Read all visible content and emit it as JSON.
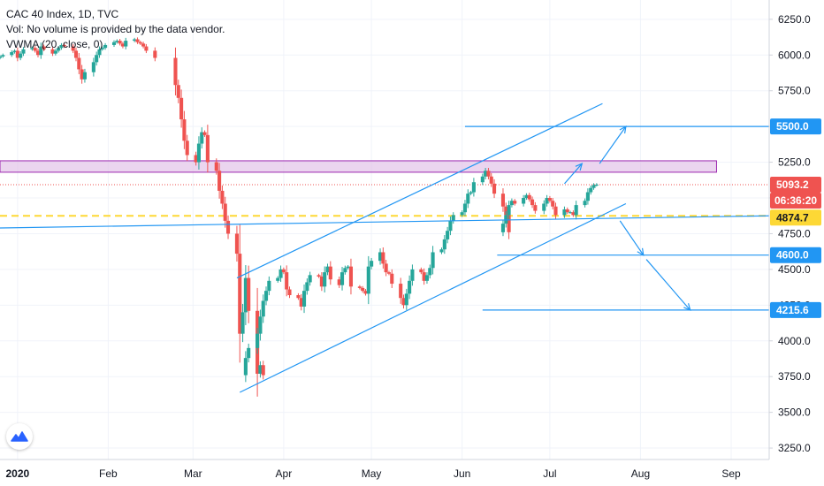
{
  "header": {
    "title": "CAC 40 Index, 1D, TVC",
    "volume_note": "Vol: No volume is provided by the data vendor.",
    "indicator": "VWMA (20, close, 0)"
  },
  "logo_icon": "tradingview-logo-icon",
  "countdown": "06:36:20",
  "colors": {
    "up": "#26a69a",
    "down": "#ef5350",
    "drawing": "#2196f3",
    "zone_fill": "#e1bee7",
    "zone_border": "#9c27b0",
    "vwma": "#fdd835"
  },
  "chart_data": {
    "type": "candlestick",
    "title": "CAC 40 Index, 1D, TVC",
    "xlabel": "",
    "ylabel": "",
    "y_scale": "linear",
    "ylim": [
      3170,
      6385
    ],
    "x_range": [
      "2019-12-26",
      "2020-09-14"
    ],
    "x_ticks": [
      {
        "label": "2020",
        "date": "2020-01-01",
        "bold": true
      },
      {
        "label": "Feb",
        "date": "2020-02-01"
      },
      {
        "label": "Mar",
        "date": "2020-03-01"
      },
      {
        "label": "Apr",
        "date": "2020-04-01"
      },
      {
        "label": "May",
        "date": "2020-05-01"
      },
      {
        "label": "Jun",
        "date": "2020-06-01"
      },
      {
        "label": "Jul",
        "date": "2020-07-01"
      },
      {
        "label": "Aug",
        "date": "2020-08-01"
      },
      {
        "label": "Sep",
        "date": "2020-09-01"
      }
    ],
    "y_ticks": [
      "3250.0",
      "3500.0",
      "3750.0",
      "4000.0",
      "4250.0",
      "4500.0",
      "4750.0",
      "5000.0",
      "5250.0",
      "5500.0",
      "5750.0",
      "6000.0",
      "6250.0"
    ],
    "price_labels": [
      {
        "value": 5500.0,
        "text": "5500.0",
        "style": "drawing"
      },
      {
        "value": 5093.2,
        "text": "5093.2",
        "style": "last"
      },
      {
        "value": 4874.7,
        "text": "4874.7",
        "style": "vwma"
      },
      {
        "value": 4600.0,
        "text": "4600.0",
        "style": "drawing"
      },
      {
        "value": 4215.6,
        "text": "4215.6",
        "style": "drawing"
      }
    ],
    "candle_segments": [
      {
        "start": "2019-12-26",
        "days": 38,
        "prices": [
          5990,
          6000,
          6020,
          6030,
          5980,
          6010,
          6040,
          6050,
          6030,
          6000,
          6060,
          6040,
          6010,
          6030,
          6050,
          6070,
          6060,
          6030,
          5980,
          5900,
          5830,
          5880,
          5950,
          6000,
          6040,
          6050,
          6070,
          6090,
          6100,
          6080,
          6060,
          6100,
          6110,
          6090,
          6080,
          6060,
          6030,
          5980
        ]
      },
      {
        "start": "2020-02-24",
        "days": 23,
        "prices": [
          5790,
          5700,
          5550,
          5400,
          5300,
          5250,
          5380,
          5460,
          5440,
          5250,
          5190,
          5050,
          4960,
          4840,
          4750,
          4610,
          4050,
          4200,
          4440,
          4210,
          3770,
          3830,
          3760
        ]
      },
      {
        "start": "2020-03-19",
        "days": 58,
        "prices": [
          3880,
          3950,
          4050,
          4170,
          4280,
          4350,
          4420,
          4440,
          4500,
          4480,
          4360,
          4320,
          4300,
          4240,
          4350,
          4410,
          4460,
          4450,
          4380,
          4480,
          4520,
          4430,
          4390,
          4480,
          4510,
          4520,
          4380,
          4370,
          4350,
          4330,
          4520,
          4560,
          4620,
          4540,
          4480,
          4470,
          4400,
          4300,
          4250,
          4330,
          4420,
          4500,
          4480,
          4420,
          4460,
          4510,
          4620,
          4640,
          4710,
          4770,
          4840,
          4880,
          4900,
          4960,
          5030,
          5040,
          5110,
          5150
        ]
      },
      {
        "start": "2020-06-09",
        "days": 7,
        "prices": [
          5190,
          5150,
          5100,
          5030,
          4940,
          4880,
          4760
        ]
      },
      {
        "start": "2020-06-15",
        "days": 25,
        "prices": [
          4820,
          4880,
          4950,
          4980,
          4960,
          5000,
          5020,
          4990,
          4950,
          4910,
          4960,
          5000,
          4980,
          4940,
          4880,
          4920,
          4900,
          4900,
          4880,
          4950,
          4980,
          5040,
          5070,
          5090,
          5093.2
        ]
      }
    ],
    "series": [
      {
        "name": "VWMA (20, close, 0)",
        "type": "horizontal-dashed",
        "value": 4874.7
      }
    ],
    "drawings": {
      "resistance_zone": {
        "x1": "2019-12-26",
        "x2": "2020-08-27",
        "y1": 5180,
        "y2": 5260
      },
      "last_price_line": 5093.2,
      "trendlines": [
        {
          "from": [
            "2019-12-26",
            4790
          ],
          "to": [
            "2020-09-14",
            4875
          ]
        },
        {
          "from": [
            "2020-03-16",
            4440
          ],
          "to": [
            "2020-07-19",
            5660
          ]
        },
        {
          "from": [
            "2020-03-17",
            3640
          ],
          "to": [
            "2020-07-27",
            4960
          ]
        }
      ],
      "hlines": [
        {
          "from": "2020-06-02",
          "to": "2020-09-14",
          "value": 5500
        },
        {
          "from": "2020-06-13",
          "to": "2020-09-14",
          "value": 4600
        },
        {
          "from": "2020-06-08",
          "to": "2020-09-14",
          "value": 4215.6
        }
      ],
      "arrows": [
        {
          "from": [
            "2020-07-06",
            5100
          ],
          "to": [
            "2020-07-12",
            5240
          ]
        },
        {
          "from": [
            "2020-07-18",
            5240
          ],
          "to": [
            "2020-07-27",
            5500
          ]
        },
        {
          "from": [
            "2020-07-25",
            4840
          ],
          "to": [
            "2020-08-02",
            4600
          ]
        },
        {
          "from": [
            "2020-08-03",
            4570
          ],
          "to": [
            "2020-08-18",
            4215
          ]
        }
      ]
    }
  }
}
